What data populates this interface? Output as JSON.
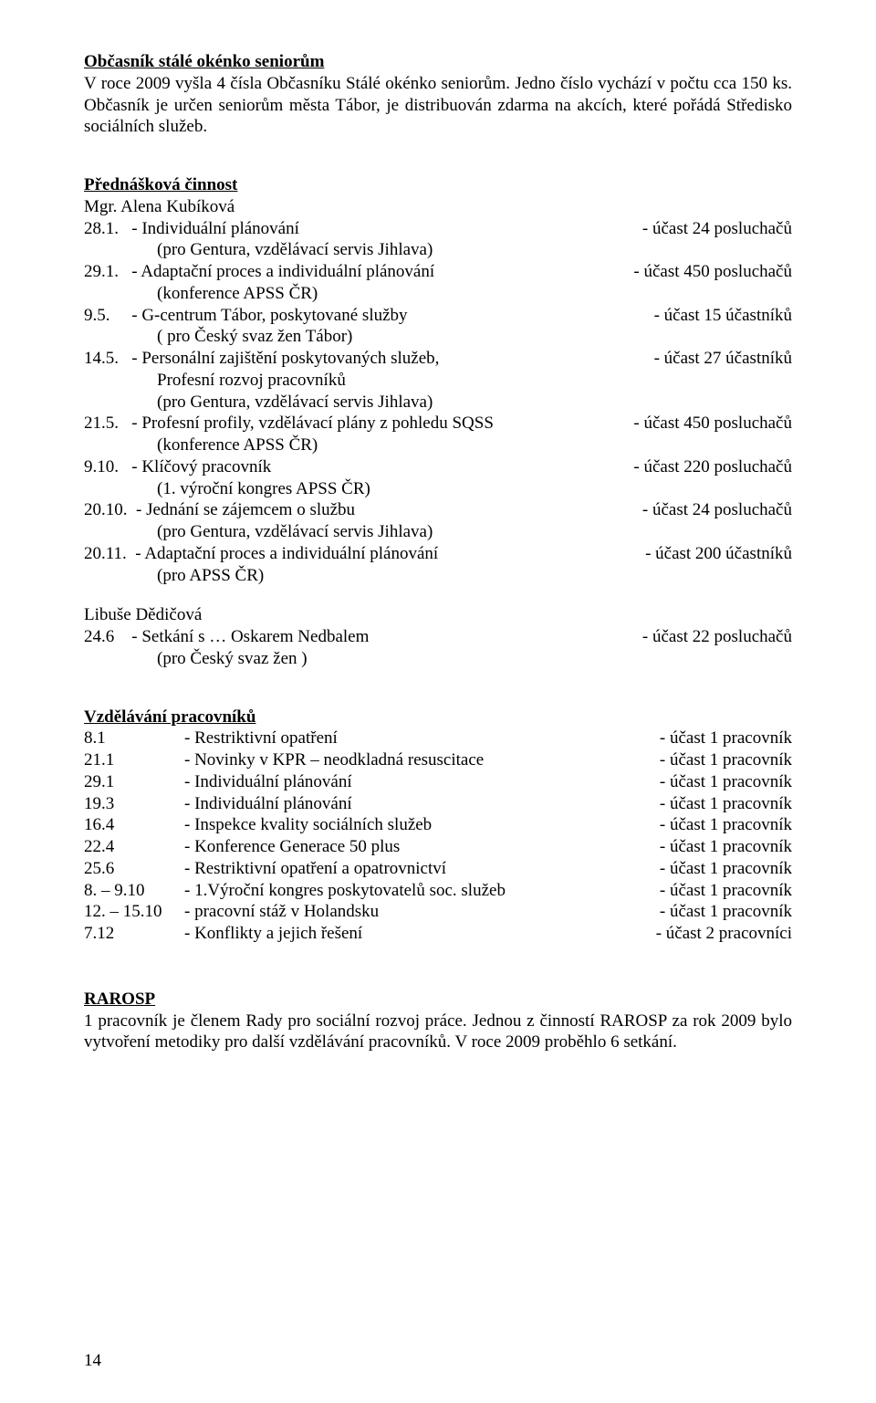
{
  "section1": {
    "title": "Občasník stálé okénko seniorům",
    "body": "V roce 2009 vyšla 4 čísla Občasníku Stálé okénko seniorům. Jedno číslo vychází v počtu cca 150 ks. Občasník je určen seniorům města Tábor, je distribuován zdarma na akcích, které pořádá Středisko sociálních služeb."
  },
  "lectures": {
    "title": "Přednášková činnost",
    "presenter1": "Mgr. Alena Kubíková",
    "items": [
      {
        "date": "28.1.",
        "text": "- Individuální plánování",
        "sub": "(pro Gentura, vzdělávací servis Jihlava)",
        "att": "- účast 24 posluchačů"
      },
      {
        "date": "29.1.",
        "text": "- Adaptační proces a individuální plánování",
        "sub": "(konference APSS ČR)",
        "att": "- účast 450 posluchačů"
      },
      {
        "date": "9.5.",
        "text": "- G-centrum Tábor, poskytované služby",
        "sub": "( pro Český svaz žen Tábor)",
        "att": "- účast 15 účastníků"
      },
      {
        "date": "14.5.",
        "text": "- Personální zajištění poskytovaných služeb,",
        "sub": "Profesní rozvoj pracovníků",
        "sub2": "(pro Gentura, vzdělávací servis Jihlava)",
        "att": "- účast 27 účastníků"
      },
      {
        "date": "21.5.",
        "text": "- Profesní profily, vzdělávací plány z pohledu SQSS",
        "sub": "(konference APSS ČR)",
        "att": "- účast 450 posluchačů"
      },
      {
        "date": "9.10.",
        "text": "- Klíčový pracovník",
        "sub": "(1. výroční kongres APSS ČR)",
        "att": "- účast 220 posluchačů"
      },
      {
        "date": "20.10.",
        "text": "- Jednání se zájemcem o službu",
        "sub": "(pro Gentura, vzdělávací servis Jihlava)",
        "att": "- účast 24 posluchačů"
      },
      {
        "date": "20.11.",
        "text": "- Adaptační proces a individuální plánování",
        "sub": "(pro APSS ČR)",
        "att": "- účast 200 účastníků"
      }
    ],
    "presenter2": "Libuše Dědičová",
    "items2": [
      {
        "date": "24.6",
        "text": "- Setkání s … Oskarem Nedbalem",
        "sub": "(pro Český svaz žen )",
        "att": "- účast 22 posluchačů"
      }
    ]
  },
  "training": {
    "title": "Vzdělávání pracovníků",
    "rows": [
      {
        "c1": "8.1",
        "c2": "-  Restriktivní opatření",
        "c3": "- účast 1 pracovník"
      },
      {
        "c1": "21.1",
        "c2": "-  Novinky v KPR – neodkladná resuscitace",
        "c3": "- účast 1 pracovník"
      },
      {
        "c1": "29.1",
        "c2": "-  Individuální plánování",
        "c3": "- účast 1 pracovník"
      },
      {
        "c1": "19.3",
        "c2": "-  Individuální plánování",
        "c3": "- účast 1 pracovník"
      },
      {
        "c1": "16.4",
        "c2": "-  Inspekce kvality sociálních služeb",
        "c3": "- účast 1 pracovník"
      },
      {
        "c1": "22.4",
        "c2": "-  Konference Generace 50 plus",
        "c3": "- účast 1 pracovník"
      },
      {
        "c1": "25.6",
        "c2": "-  Restriktivní opatření a opatrovnictví",
        "c3": "- účast 1 pracovník"
      },
      {
        "c1": "8. – 9.10",
        "c2": "- 1.Výroční kongres poskytovatelů soc. služeb",
        "c3": "- účast 1 pracovník"
      },
      {
        "c1": "12. – 15.10",
        "c2": "- pracovní stáž v Holandsku",
        "c3": "- účast  1  pracovník"
      },
      {
        "c1": "7.12",
        "c2": "-  Konflikty a jejich řešení",
        "c3": "- účast  2  pracovníci"
      }
    ]
  },
  "rarosp": {
    "title": "RAROSP",
    "body": "1 pracovník je členem Rady pro sociální rozvoj práce. Jednou z činností RAROSP za rok 2009 bylo vytvoření metodiky pro další vzdělávání pracovníků. V roce 2009 proběhlo 6 setkání."
  },
  "pageNumber": "14"
}
